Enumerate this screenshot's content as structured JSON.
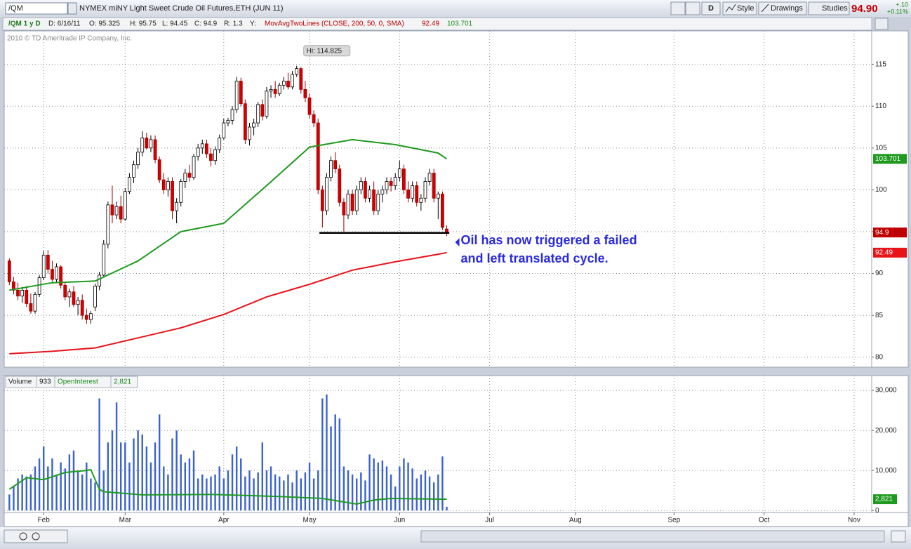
{
  "toolbar": {
    "symbol": "/QM",
    "description": "NYMEX miNY Light Sweet Crude Oil Futures,ETH (JUN 11)",
    "period_button": "D",
    "style_button": "Style",
    "drawings_button": "Drawings",
    "studies_button": "Studies",
    "last_price": "94.90",
    "net_change": "+.10",
    "percent_change": "+0.11%"
  },
  "info_bar": {
    "chart_id": "/QM 1 y D",
    "date": "D: 6/16/11",
    "open": "O: 95.325",
    "high": "H: 95.75",
    "low": "L: 94.45",
    "close": "C: 94.9",
    "range": "R: 1.3",
    "y_label": "Y:",
    "study": "MovAvgTwoLines (CLOSE, 200, 50, 0, SMA)"
  },
  "copyright": "2010 © TD Ameritrade IP Company, Inc.",
  "chart_data": [
    {
      "type": "candlestick",
      "x": [
        -8,
        -7,
        -6,
        -5,
        -4,
        -3,
        -2,
        -1,
        0,
        1,
        2,
        3,
        4,
        5,
        6,
        7,
        8,
        9,
        10,
        11,
        12,
        13,
        14,
        15,
        16,
        17,
        18,
        19,
        20,
        21,
        22,
        23,
        24,
        25,
        26,
        27,
        28,
        29,
        30,
        31,
        32,
        33,
        34,
        35,
        36,
        37,
        38,
        39,
        40,
        41,
        42,
        43,
        44,
        45,
        46,
        47,
        48,
        49,
        50,
        51,
        52,
        53,
        54,
        55,
        56,
        57,
        58,
        59,
        60,
        61,
        62,
        63,
        64,
        65,
        66,
        67,
        68,
        69,
        70,
        71,
        72,
        73,
        74,
        75,
        76,
        77,
        78,
        79,
        80,
        81,
        82,
        83,
        84,
        85,
        86,
        87,
        88,
        89,
        90,
        91,
        92,
        93,
        94
      ],
      "ohlc": [
        [
          91.5,
          91.8,
          88.6,
          89.0
        ],
        [
          89.0,
          89.6,
          87.5,
          88.0
        ],
        [
          88.0,
          88.9,
          86.8,
          87.3
        ],
        [
          87.3,
          88.4,
          86.5,
          88.0
        ],
        [
          88.0,
          88.5,
          86.0,
          86.4
        ],
        [
          86.4,
          87.6,
          85.2,
          85.5
        ],
        [
          85.5,
          87.8,
          85.2,
          87.5
        ],
        [
          87.5,
          89.8,
          87.2,
          89.5
        ],
        [
          89.5,
          92.7,
          89.2,
          92.2
        ],
        [
          92.2,
          92.8,
          90.0,
          90.5
        ],
        [
          90.5,
          91.5,
          89.0,
          89.3
        ],
        [
          89.3,
          91.2,
          88.9,
          90.8
        ],
        [
          90.8,
          91.0,
          88.2,
          88.6
        ],
        [
          88.6,
          89.0,
          86.8,
          87.2
        ],
        [
          87.2,
          88.2,
          86.0,
          87.8
        ],
        [
          87.8,
          88.5,
          86.0,
          86.3
        ],
        [
          86.3,
          87.2,
          85.0,
          86.8
        ],
        [
          86.8,
          87.5,
          84.5,
          85.0
        ],
        [
          85.0,
          85.8,
          84.0,
          84.5
        ],
        [
          84.5,
          85.5,
          84.0,
          85.2
        ],
        [
          86.0,
          88.8,
          85.5,
          88.5
        ],
        [
          88.5,
          90.2,
          88.0,
          89.8
        ],
        [
          89.8,
          94.0,
          89.5,
          93.5
        ],
        [
          93.5,
          98.6,
          93.0,
          98.2
        ],
        [
          98.2,
          100.5,
          96.0,
          97.0
        ],
        [
          97.0,
          98.6,
          96.5,
          98.0
        ],
        [
          98.0,
          99.3,
          96.0,
          96.5
        ],
        [
          96.5,
          100.2,
          96.3,
          99.8
        ],
        [
          99.8,
          102.0,
          99.5,
          101.5
        ],
        [
          101.5,
          103.5,
          100.8,
          103.0
        ],
        [
          103.0,
          105.0,
          102.5,
          104.5
        ],
        [
          104.5,
          107.0,
          104.0,
          106.2
        ],
        [
          106.2,
          106.8,
          104.8,
          105.0
        ],
        [
          105.0,
          106.5,
          104.5,
          106.0
        ],
        [
          106.0,
          106.5,
          103.2,
          103.6
        ],
        [
          103.6,
          104.0,
          100.8,
          101.2
        ],
        [
          101.2,
          102.0,
          99.5,
          100.0
        ],
        [
          100.0,
          101.5,
          99.2,
          101.0
        ],
        [
          101.0,
          101.5,
          96.5,
          97.5
        ],
        [
          97.5,
          99.0,
          96.0,
          98.5
        ],
        [
          98.5,
          101.3,
          98.0,
          101.0
        ],
        [
          101.0,
          102.5,
          100.2,
          102.0
        ],
        [
          102.0,
          103.0,
          101.0,
          101.5
        ],
        [
          101.5,
          104.3,
          101.2,
          104.0
        ],
        [
          104.0,
          105.5,
          103.5,
          105.0
        ],
        [
          105.0,
          106.0,
          104.3,
          105.5
        ],
        [
          105.5,
          106.0,
          103.8,
          104.3
        ],
        [
          104.3,
          105.0,
          102.8,
          103.5
        ],
        [
          103.5,
          105.2,
          103.0,
          104.8
        ],
        [
          104.8,
          106.6,
          104.4,
          106.2
        ],
        [
          106.2,
          108.5,
          106.0,
          108.0
        ],
        [
          108.0,
          108.6,
          107.6,
          108.3
        ],
        [
          108.3,
          110.0,
          107.8,
          109.6
        ],
        [
          109.6,
          113.5,
          109.2,
          113.0
        ],
        [
          113.0,
          113.4,
          110.0,
          110.3
        ],
        [
          110.3,
          110.8,
          105.5,
          106.0
        ],
        [
          106.0,
          108.0,
          105.3,
          107.5
        ],
        [
          107.5,
          108.5,
          106.5,
          108.0
        ],
        [
          108.0,
          110.5,
          107.5,
          110.2
        ],
        [
          110.2,
          110.8,
          108.3,
          108.8
        ],
        [
          108.8,
          112.3,
          108.5,
          111.8
        ],
        [
          111.8,
          112.5,
          111.0,
          112.0
        ],
        [
          112.0,
          113.0,
          111.0,
          111.5
        ],
        [
          111.5,
          112.8,
          111.2,
          112.5
        ],
        [
          112.5,
          113.5,
          112.0,
          113.0
        ],
        [
          113.0,
          114.0,
          112.0,
          112.3
        ],
        [
          112.3,
          114.2,
          112.0,
          113.8
        ],
        [
          113.8,
          114.825,
          113.5,
          114.5
        ],
        [
          114.5,
          114.7,
          111.5,
          112.0
        ],
        [
          112.0,
          113.0,
          110.5,
          111.0
        ],
        [
          111.0,
          111.5,
          108.5,
          109.0
        ],
        [
          109.0,
          109.5,
          107.5,
          108.0
        ],
        [
          108.0,
          108.5,
          99.5,
          100.0
        ],
        [
          100.0,
          100.5,
          95.5,
          97.5
        ],
        [
          97.5,
          102.0,
          97.0,
          101.5
        ],
        [
          101.5,
          104.0,
          101.0,
          103.5
        ],
        [
          103.5,
          104.5,
          102.0,
          102.5
        ],
        [
          102.5,
          103.0,
          98.0,
          98.5
        ],
        [
          98.5,
          99.0,
          95.0,
          97.0
        ],
        [
          97.0,
          100.0,
          96.5,
          99.5
        ],
        [
          99.5,
          100.0,
          97.0,
          97.5
        ],
        [
          97.5,
          100.5,
          97.0,
          100.0
        ],
        [
          100.0,
          101.5,
          99.5,
          101.0
        ],
        [
          101.0,
          101.5,
          98.5,
          99.0
        ],
        [
          99.0,
          100.5,
          98.5,
          100.0
        ],
        [
          100.0,
          101.0,
          97.0,
          97.5
        ],
        [
          97.5,
          100.0,
          97.0,
          99.5
        ],
        [
          99.5,
          100.5,
          98.5,
          100.0
        ],
        [
          100.0,
          101.5,
          99.5,
          101.0
        ],
        [
          101.0,
          101.5,
          99.8,
          100.5
        ],
        [
          100.5,
          102.0,
          100.0,
          101.5
        ],
        [
          101.5,
          103.5,
          101.0,
          102.5
        ],
        [
          102.5,
          103.0,
          99.5,
          100.0
        ],
        [
          100.0,
          101.0,
          98.5,
          99.0
        ],
        [
          99.0,
          101.0,
          98.5,
          100.5
        ],
        [
          100.5,
          101.0,
          98.0,
          98.5
        ],
        [
          98.5,
          99.5,
          97.5,
          99.0
        ],
        [
          99.0,
          101.5,
          98.5,
          101.0
        ],
        [
          101.0,
          102.5,
          100.5,
          102.0
        ],
        [
          102.0,
          102.5,
          98.5,
          99.0
        ],
        [
          99.0,
          99.8,
          96.5,
          99.5
        ],
        [
          99.5,
          99.8,
          95.2,
          95.5
        ],
        [
          95.325,
          95.75,
          94.45,
          94.9
        ]
      ],
      "up_color": "#ffffff",
      "down_color": "#d40000",
      "series": [
        {
          "name": "MovAvg 200",
          "color": "#e8141a",
          "x": [
            -8,
            2,
            12,
            22,
            32,
            42,
            52,
            62,
            72,
            82,
            92,
            94
          ],
          "values": [
            80.4,
            80.7,
            81.1,
            82.3,
            83.5,
            85.1,
            87.2,
            88.7,
            90.4,
            91.4,
            92.3,
            92.49
          ]
        },
        {
          "name": "MovAvg 50",
          "color": "#1f9a1f",
          "x": [
            -8,
            2,
            12,
            22,
            32,
            42,
            52,
            62,
            72,
            82,
            92,
            94
          ],
          "values": [
            88.0,
            88.9,
            89.1,
            91.5,
            95.0,
            96.0,
            100.5,
            105.1,
            106.0,
            105.4,
            104.4,
            103.701
          ]
        }
      ],
      "support_line": {
        "x": [
          64.3,
          94.6
        ],
        "y": [
          94.85,
          94.85
        ],
        "color": "#000000"
      },
      "high_label": "Hi: 114.825",
      "annotation": [
        "Oil has now triggered a failed",
        "and left translated cycle."
      ],
      "annotation_color": "#2a2ae0",
      "xlim": [
        -9.2,
        193.1
      ],
      "xticks": [
        {
          "value": 0,
          "label": "Feb"
        },
        {
          "value": 19,
          "label": "Mar"
        },
        {
          "value": 42,
          "label": "Apr"
        },
        {
          "value": 62,
          "label": "May"
        },
        {
          "value": 83,
          "label": "Jun"
        },
        {
          "value": 104,
          "label": "Jul"
        },
        {
          "value": 124,
          "label": "Aug"
        },
        {
          "value": 147,
          "label": "Sep"
        },
        {
          "value": 168,
          "label": "Oct"
        },
        {
          "value": 189,
          "label": "Nov"
        }
      ],
      "ylim": [
        78.8,
        119.0
      ],
      "yticks": [
        80,
        85,
        90,
        95,
        100,
        105,
        110,
        115
      ],
      "grid": true
    },
    {
      "type": "bar",
      "x": [
        -8,
        -7,
        -6,
        -5,
        -4,
        -3,
        -2,
        -1,
        0,
        1,
        2,
        3,
        4,
        5,
        6,
        7,
        8,
        9,
        10,
        11,
        12,
        13,
        14,
        15,
        16,
        17,
        18,
        19,
        20,
        21,
        22,
        23,
        24,
        25,
        26,
        27,
        28,
        29,
        30,
        31,
        32,
        33,
        34,
        35,
        36,
        37,
        38,
        39,
        40,
        41,
        42,
        43,
        44,
        45,
        46,
        47,
        48,
        49,
        50,
        51,
        52,
        53,
        54,
        55,
        56,
        57,
        58,
        59,
        60,
        61,
        62,
        63,
        64,
        65,
        66,
        67,
        68,
        69,
        70,
        71,
        72,
        73,
        74,
        75,
        76,
        77,
        78,
        79,
        80,
        81,
        82,
        83,
        84,
        85,
        86,
        87,
        88,
        89,
        90,
        91,
        92,
        93,
        94
      ],
      "series": [
        {
          "name": "Volume",
          "color": "#3a62d0",
          "values": [
            4000,
            6000,
            8000,
            9000,
            8500,
            9000,
            11000,
            13000,
            16000,
            11000,
            13000,
            9000,
            12000,
            10500,
            14000,
            15000,
            10000,
            9000,
            12000,
            8000,
            7000,
            28000,
            10000,
            17000,
            20000,
            27000,
            17000,
            17000,
            12000,
            18000,
            20000,
            19000,
            16000,
            12000,
            17000,
            24000,
            11000,
            9000,
            18000,
            20000,
            14000,
            12000,
            13000,
            15000,
            8000,
            9000,
            8000,
            8500,
            9000,
            11000,
            8000,
            10000,
            14000,
            16000,
            13000,
            8500,
            10000,
            8000,
            9500,
            17000,
            10000,
            11000,
            9000,
            8500,
            7500,
            9000,
            7000,
            10000,
            8000,
            9500,
            12000,
            8000,
            10000,
            28000,
            29000,
            21000,
            24000,
            23000,
            11000,
            10000,
            9000,
            8000,
            9500,
            7500,
            14000,
            13000,
            12000,
            12500,
            11000,
            9000,
            6000,
            11000,
            13000,
            12000,
            10500,
            8000,
            9000,
            10000,
            8500,
            7000,
            9000,
            13500,
            933
          ]
        },
        {
          "name": "OpenInterest",
          "color": "#1f9a1f",
          "x": [
            -8,
            -4,
            0,
            5,
            10,
            11,
            13,
            14,
            23,
            39,
            55,
            65,
            73,
            77,
            81,
            94
          ],
          "values": [
            5300,
            8200,
            7700,
            9500,
            10000,
            10200,
            5300,
            4700,
            3900,
            4000,
            3500,
            3000,
            1600,
            2600,
            3000,
            2821
          ],
          "value_labels": [
            null,
            null,
            null,
            null,
            null,
            null,
            null,
            null,
            null,
            null,
            null,
            null,
            null,
            null,
            null,
            "2,821"
          ]
        }
      ],
      "xlim": [
        -9.2,
        193.1
      ],
      "xticks": [
        {
          "value": 0,
          "label": "Feb"
        },
        {
          "value": 19,
          "label": "Mar"
        },
        {
          "value": 42,
          "label": "Apr"
        },
        {
          "value": 62,
          "label": "May"
        },
        {
          "value": 83,
          "label": "Jun"
        },
        {
          "value": 104,
          "label": "Jul"
        },
        {
          "value": 124,
          "label": "Aug"
        },
        {
          "value": 147,
          "label": "Sep"
        },
        {
          "value": 168,
          "label": "Oct"
        },
        {
          "value": 189,
          "label": "Nov"
        }
      ],
      "ylim": [
        -500,
        33700
      ],
      "yticks": [
        0,
        {
          "value": 10000,
          "label": "10,000"
        },
        {
          "value": 20000,
          "label": "20,000"
        },
        {
          "value": 30000,
          "label": "30,000"
        }
      ],
      "grid": true
    }
  ]
}
